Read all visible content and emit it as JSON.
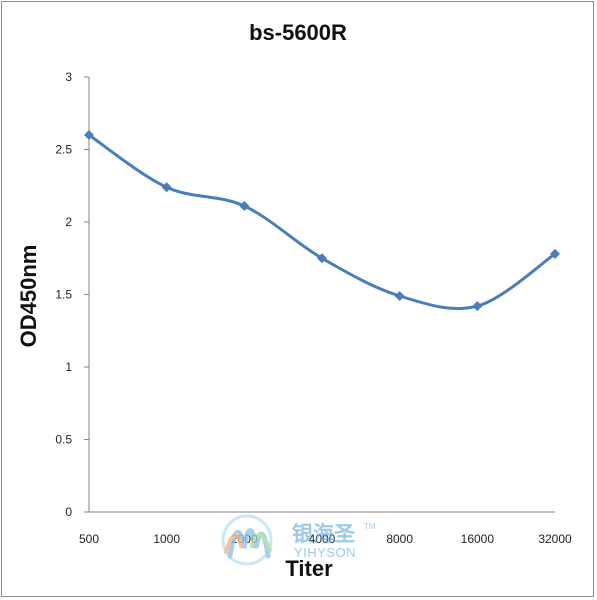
{
  "chart_data": {
    "type": "line",
    "title": "bs-5600R",
    "xlabel": "Titer",
    "ylabel": "OD450nm",
    "categories": [
      "500",
      "1000",
      "2000",
      "4000",
      "8000",
      "16000",
      "32000"
    ],
    "series": [
      {
        "values": [
          2.6,
          2.24,
          2.11,
          1.75,
          1.49,
          1.42,
          1.78
        ]
      }
    ],
    "ylim": [
      0,
      3
    ],
    "yticks": [
      "0",
      "0.5",
      "1",
      "1.5",
      "2",
      "2.5",
      "3"
    ],
    "grid": false,
    "line_color": "#4a7ebb",
    "marker": "diamond"
  },
  "watermark": {
    "cn": "银海圣",
    "en": "YIHYSON",
    "tm": "TM"
  }
}
